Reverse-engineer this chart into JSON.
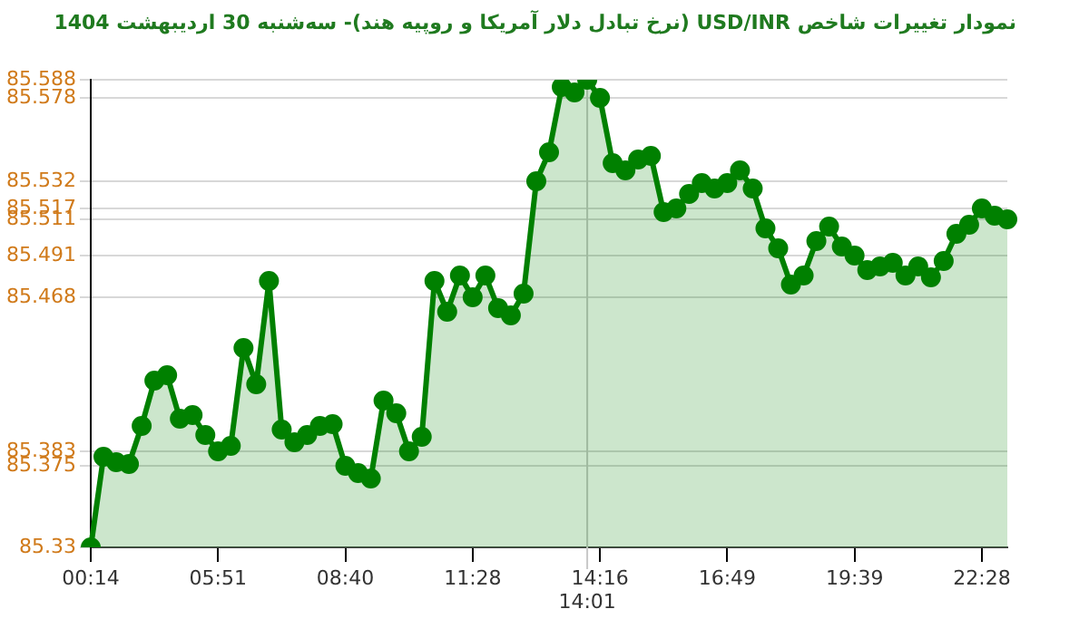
{
  "chart_data": {
    "type": "area",
    "title": "نمودار تغییرات شاخص USD/INR (نرخ تبادل دلار آمریکا و روپیه هند)- سه‌شنبه  30 اردیبهشت 1404",
    "categories": [
      "00:14",
      null,
      null,
      null,
      null,
      null,
      null,
      null,
      null,
      null,
      "05:51",
      null,
      null,
      null,
      null,
      null,
      null,
      null,
      null,
      null,
      "08:40",
      null,
      null,
      null,
      null,
      null,
      null,
      null,
      null,
      null,
      "11:28",
      null,
      null,
      null,
      null,
      null,
      null,
      null,
      null,
      "14:01",
      "14:16",
      null,
      null,
      null,
      null,
      null,
      null,
      null,
      null,
      null,
      "16:49",
      null,
      null,
      null,
      null,
      null,
      null,
      null,
      null,
      null,
      "19:39",
      null,
      null,
      null,
      null,
      null,
      null,
      null,
      null,
      null,
      "22:28",
      null,
      null
    ],
    "series": [
      {
        "color": "#008000",
        "values": [
          85.33,
          85.38,
          85.377,
          85.376,
          85.397,
          85.422,
          85.425,
          85.401,
          85.403,
          85.392,
          85.383,
          85.386,
          85.44,
          85.42,
          85.477,
          85.395,
          85.388,
          85.392,
          85.397,
          85.398,
          85.375,
          85.371,
          85.368,
          85.411,
          85.404,
          85.383,
          85.391,
          85.477,
          85.46,
          85.48,
          85.468,
          85.48,
          85.462,
          85.458,
          85.47,
          85.532,
          85.548,
          85.584,
          85.581,
          85.588,
          85.578,
          85.542,
          85.538,
          85.544,
          85.546,
          85.515,
          85.517,
          85.525,
          85.531,
          85.528,
          85.531,
          85.538,
          85.528,
          85.506,
          85.495,
          85.475,
          85.48,
          85.499,
          85.507,
          85.496,
          85.491,
          85.483,
          85.485,
          85.487,
          85.48,
          85.485,
          85.479,
          85.488,
          85.503,
          85.508,
          85.517,
          85.513,
          85.511
        ]
      }
    ],
    "ylim": [
      85.33,
      85.588
    ],
    "yticks": [
      85.33,
      85.375,
      85.383,
      85.468,
      85.491,
      85.511,
      85.517,
      85.532,
      85.578,
      85.588
    ],
    "grid": "y",
    "marker": "circle",
    "legend": false,
    "ref_lines": [
      {
        "axis": "x",
        "value": "14:01"
      }
    ]
  }
}
